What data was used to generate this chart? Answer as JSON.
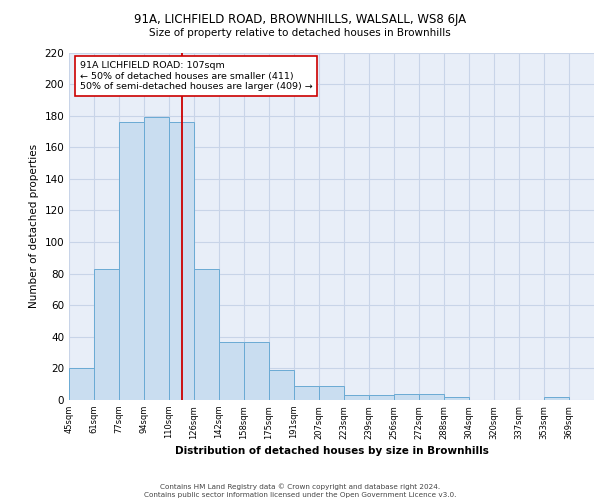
{
  "title_line1": "91A, LICHFIELD ROAD, BROWNHILLS, WALSALL, WS8 6JA",
  "title_line2": "Size of property relative to detached houses in Brownhills",
  "xlabel": "Distribution of detached houses by size in Brownhills",
  "ylabel": "Number of detached properties",
  "bin_labels": [
    "45sqm",
    "61sqm",
    "77sqm",
    "94sqm",
    "110sqm",
    "126sqm",
    "142sqm",
    "158sqm",
    "175sqm",
    "191sqm",
    "207sqm",
    "223sqm",
    "239sqm",
    "256sqm",
    "272sqm",
    "288sqm",
    "304sqm",
    "320sqm",
    "337sqm",
    "353sqm",
    "369sqm"
  ],
  "bar_values": [
    20,
    83,
    176,
    179,
    176,
    83,
    37,
    37,
    19,
    9,
    9,
    3,
    3,
    4,
    4,
    2,
    0,
    0,
    0,
    2,
    0
  ],
  "bar_color": "#c9ddf0",
  "bar_edge_color": "#6aaad4",
  "vline_index": 4.5,
  "vline_color": "#cc0000",
  "annotation_text": "91A LICHFIELD ROAD: 107sqm\n← 50% of detached houses are smaller (411)\n50% of semi-detached houses are larger (409) →",
  "annotation_box_facecolor": "white",
  "annotation_box_edgecolor": "#cc0000",
  "ylim": [
    0,
    220
  ],
  "yticks": [
    0,
    20,
    40,
    60,
    80,
    100,
    120,
    140,
    160,
    180,
    200,
    220
  ],
  "grid_color": "#c8d4e8",
  "background_color": "#e8eef8",
  "footer_line1": "Contains HM Land Registry data © Crown copyright and database right 2024.",
  "footer_line2": "Contains public sector information licensed under the Open Government Licence v3.0."
}
